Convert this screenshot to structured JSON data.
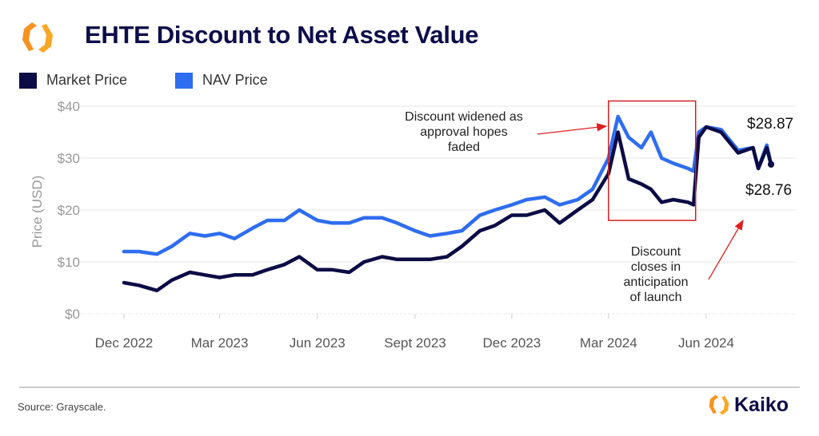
{
  "header": {
    "title": "EHTE Discount to Net Asset Value",
    "logo": "orange-hexagon-logo"
  },
  "footer": {
    "source": "Source: Grayscale.",
    "brand": "Kaiko"
  },
  "colors": {
    "market": "#0b0b45",
    "nav": "#2f6df0",
    "annotation": "#e02020",
    "title": "#0d0d4a"
  },
  "chart_data": {
    "type": "line",
    "title": "EHTE Discount to Net Asset Value",
    "xlabel": "",
    "ylabel": "Price (USD)",
    "ylim": [
      0,
      40
    ],
    "yticks": [
      "$0",
      "$10",
      "$20",
      "$30",
      "$40"
    ],
    "ytick_values": [
      0,
      10,
      20,
      30,
      40
    ],
    "xticks": [
      "Dec 2022",
      "Mar 2023",
      "Jun 2023",
      "Sept 2023",
      "Dec 2023",
      "Mar 2024",
      "Jun 2024"
    ],
    "xtick_dates": [
      "2022-12-01",
      "2023-03-01",
      "2023-06-01",
      "2023-09-01",
      "2023-12-01",
      "2024-03-01",
      "2024-06-01"
    ],
    "grid": true,
    "legend": "top-left",
    "x": [
      "2022-12-01",
      "2022-12-15",
      "2023-01-01",
      "2023-01-15",
      "2023-02-01",
      "2023-02-15",
      "2023-03-01",
      "2023-03-15",
      "2023-04-01",
      "2023-04-15",
      "2023-05-01",
      "2023-05-15",
      "2023-06-01",
      "2023-06-15",
      "2023-07-01",
      "2023-07-15",
      "2023-08-01",
      "2023-08-15",
      "2023-09-01",
      "2023-09-15",
      "2023-10-01",
      "2023-10-15",
      "2023-11-01",
      "2023-11-15",
      "2023-12-01",
      "2023-12-15",
      "2024-01-01",
      "2024-01-15",
      "2024-02-01",
      "2024-02-15",
      "2024-03-01",
      "2024-03-10",
      "2024-03-20",
      "2024-04-01",
      "2024-04-10",
      "2024-04-20",
      "2024-05-01",
      "2024-05-15",
      "2024-05-20",
      "2024-05-25",
      "2024-06-01",
      "2024-06-15",
      "2024-07-01",
      "2024-07-15",
      "2024-07-20",
      "2024-07-28",
      "2024-08-01"
    ],
    "series": [
      {
        "name": "Market Price",
        "values": [
          6,
          5.5,
          4.5,
          6.5,
          8,
          7.5,
          7,
          7.5,
          7.5,
          8.5,
          9.5,
          11,
          8.5,
          8.5,
          8,
          10,
          11,
          10.5,
          10.5,
          10.5,
          11,
          13,
          16,
          17,
          19,
          19,
          20,
          17.5,
          20,
          22,
          27,
          35,
          26,
          25,
          24,
          21.5,
          22,
          21.5,
          21,
          34,
          36,
          35,
          31,
          32,
          28,
          32,
          28.76
        ]
      },
      {
        "name": "NAV Price",
        "values": [
          12,
          12,
          11.5,
          13,
          15.5,
          15,
          15.5,
          14.5,
          16.5,
          18,
          18,
          20,
          18,
          17.5,
          17.5,
          18.5,
          18.5,
          17.5,
          16,
          15,
          15.5,
          16,
          19,
          20,
          21,
          22,
          22.5,
          21,
          22,
          24,
          30,
          38,
          34,
          32,
          35,
          30,
          29,
          28,
          27.5,
          35,
          36,
          35.5,
          31.5,
          32,
          28,
          32.5,
          28.87
        ]
      }
    ],
    "end_labels": {
      "nav": "$28.87",
      "market": "$28.76"
    },
    "highlight_box": {
      "x_start": "2024-03-01",
      "x_end": "2024-05-22",
      "y_low": 18,
      "y_high": 41
    },
    "annotations": [
      {
        "text_lines": [
          "Discount widened as",
          "approval hopes",
          "faded"
        ]
      },
      {
        "text_lines": [
          "Discount",
          "closes in",
          "anticipation",
          "of launch"
        ]
      }
    ]
  }
}
